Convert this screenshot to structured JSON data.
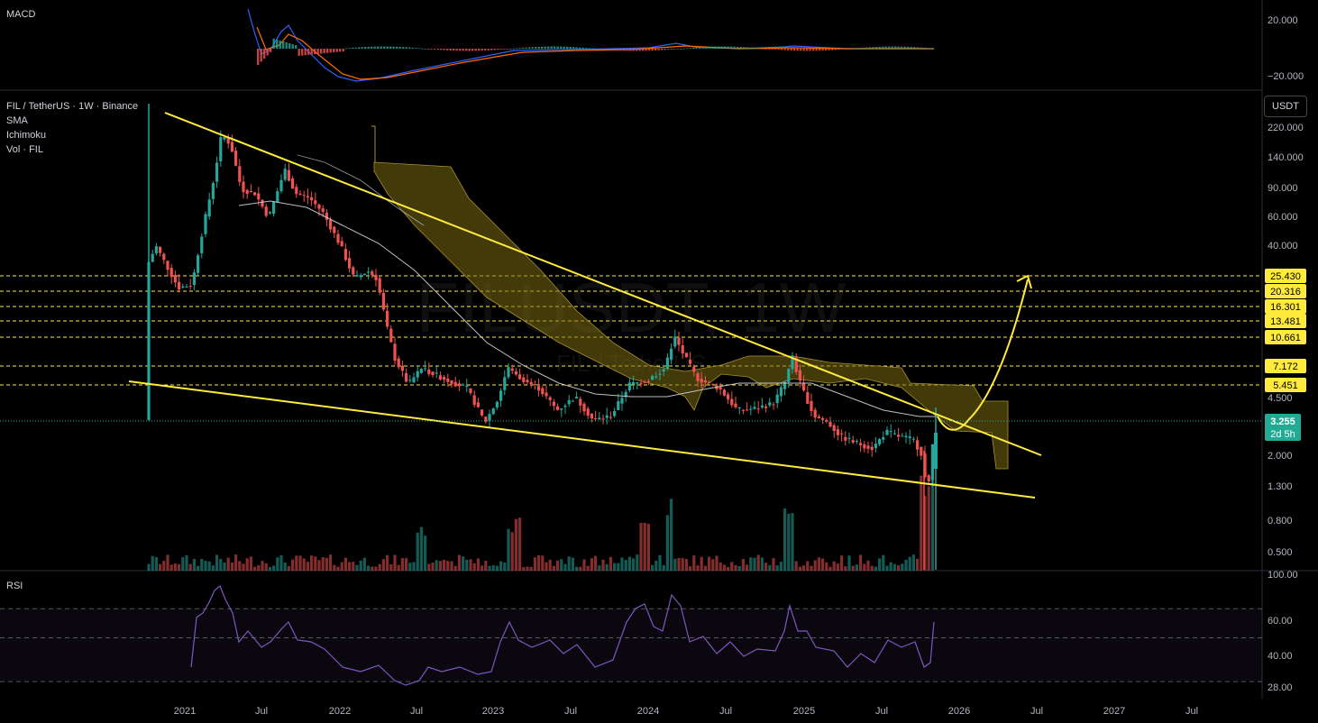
{
  "macd": {
    "title": "MACD",
    "ticks": [
      "20.000",
      "−20.000"
    ]
  },
  "main_legend": {
    "symbol": "FIL / TetherUS · 1W · Binance",
    "indicators": [
      "SMA",
      "Ichimoku",
      "Vol · FIL"
    ]
  },
  "watermark": {
    "line1": "FILUSDT, 1W",
    "line2": "FIL / TetherUS"
  },
  "unit_button": "USDT",
  "rsi": {
    "title": "RSI",
    "ticks": [
      "100.00",
      "60.00",
      "40.00",
      "28.00"
    ],
    "upper_band": 70,
    "middle": 50,
    "lower_band": 30
  },
  "colors": {
    "up": "#26a69a",
    "down": "#ef5350",
    "trendline": "#ffeb3b",
    "macd_line": "#2962ff",
    "signal_line": "#ff6d00",
    "rsi_line": "#7e57c2",
    "cloud": "#7a6a12",
    "sma": "#d1d4dc",
    "current_price": "#22ab94"
  },
  "chart_data": {
    "type": "candlestick",
    "scale": "log",
    "x_ticks": [
      "2021",
      "Jul",
      "2022",
      "Jul",
      "2023",
      "Jul",
      "2024",
      "Jul",
      "2025",
      "Jul",
      "2026",
      "Jul",
      "2027",
      "Jul"
    ],
    "y_ticks": [
      "220.000",
      "140.000",
      "90.000",
      "60.000",
      "40.000",
      "4.500",
      "2.000",
      "1.300",
      "0.800",
      "0.500"
    ],
    "price_levels": [
      "25.430",
      "20.316",
      "16.301",
      "13.481",
      "10.661",
      "7.172",
      "5.451"
    ],
    "current_price": {
      "value": "3.255",
      "countdown": "2d 5h"
    },
    "series_hint": "FIL/USDT weekly candles from late 2020 to Oct 2025; high ~230 (Apr 2021), low ~1.2 (Oct 2025)"
  }
}
